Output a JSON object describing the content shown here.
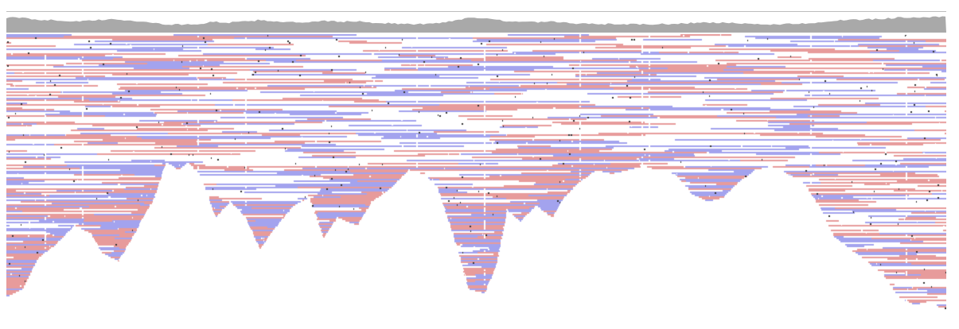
{
  "viewer": {
    "type": "genome-alignment-pileup",
    "tracks": [
      {
        "kind": "coverage",
        "color": "#a9a9a9",
        "baseline_color": "#bdbdbd"
      },
      {
        "kind": "alignments",
        "forward_strand_color": "#e79b9b",
        "reverse_strand_color": "#a3a3ee",
        "mismatch_color": "#222222",
        "gap_color": "#ffffff"
      }
    ],
    "colors": {
      "background": "#ffffff",
      "forward": "#e79b9b",
      "reverse": "#a3a3ee",
      "coverage": "#a9a9a9"
    }
  }
}
